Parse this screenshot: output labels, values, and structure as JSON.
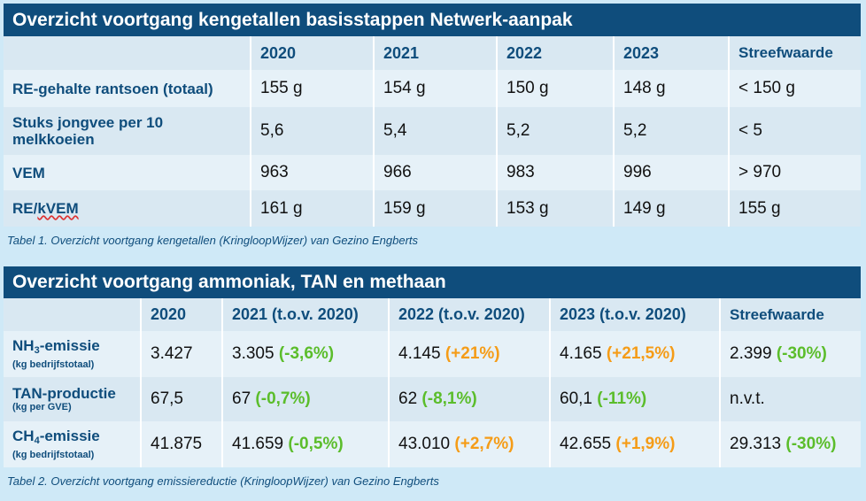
{
  "table1": {
    "title": "Overzicht voortgang kengetallen basisstappen Netwerk-aanpak",
    "headers": [
      "",
      "2020",
      "2021",
      "2022",
      "2023",
      "Streefwaarde"
    ],
    "rows": [
      {
        "label": "RE-gehalte rantsoen (totaal)",
        "values": [
          "155 g",
          "154 g",
          "150 g",
          "148 g",
          "< 150 g"
        ]
      },
      {
        "label": "Stuks jongvee per 10 melkkoeien",
        "values": [
          "5,6",
          "5,4",
          "5,2",
          "5,2",
          "< 5"
        ]
      },
      {
        "label": "VEM",
        "values": [
          "963",
          "966",
          "983",
          "996",
          "> 970"
        ]
      },
      {
        "label_prefix": "RE/",
        "label_underlined": "kVEM",
        "values": [
          "161 g",
          "159 g",
          "153 g",
          "149 g",
          "155 g"
        ]
      }
    ],
    "caption": "Tabel 1. Overzicht voortgang kengetallen (KringloopWijzer) van Gezino Engberts"
  },
  "table2": {
    "title": "Overzicht voortgang ammoniak, TAN en methaan",
    "headers": [
      "",
      "2020",
      "2021 (t.o.v. 2020)",
      "2022 (t.o.v. 2020)",
      "2023 (t.o.v. 2020)",
      "Streefwaarde"
    ],
    "rows": [
      {
        "label_pre": "NH",
        "label_sub": "3",
        "label_post": "-emissie",
        "unit": "(kg bedrijfstotaal)",
        "cells": [
          {
            "value": "3.427",
            "change": "",
            "color": ""
          },
          {
            "value": "3.305",
            "change": "(-3,6%)",
            "color": "green"
          },
          {
            "value": "4.145",
            "change": "(+21%)",
            "color": "orange"
          },
          {
            "value": "4.165",
            "change": "(+21,5%)",
            "color": "orange"
          },
          {
            "value": "2.399",
            "change": "(-30%)",
            "color": "green"
          }
        ]
      },
      {
        "label_pre": "TAN-productie",
        "label_sub": "",
        "label_post": "",
        "unit": "(kg per GVE)",
        "cells": [
          {
            "value": "67,5",
            "change": "",
            "color": ""
          },
          {
            "value": "67",
            "change": "(-0,7%)",
            "color": "green"
          },
          {
            "value": "62",
            "change": "(-8,1%)",
            "color": "green"
          },
          {
            "value": "60,1",
            "change": "(-11%)",
            "color": "green"
          },
          {
            "value": "n.v.t.",
            "change": "",
            "color": ""
          }
        ]
      },
      {
        "label_pre": "CH",
        "label_sub": "4",
        "label_post": "-emissie",
        "unit": "(kg bedrijfstotaal)",
        "cells": [
          {
            "value": "41.875",
            "change": "",
            "color": ""
          },
          {
            "value": "41.659",
            "change": "(-0,5%)",
            "color": "green"
          },
          {
            "value": "43.010",
            "change": "(+2,7%)",
            "color": "orange"
          },
          {
            "value": "42.655",
            "change": "(+1,9%)",
            "color": "orange"
          },
          {
            "value": "29.313",
            "change": "(-30%)",
            "color": "green"
          }
        ]
      }
    ],
    "caption": "Tabel 2. Overzicht voortgang emissiereductie (KringloopWijzer) van Gezino Engberts"
  },
  "colors": {
    "header_blue": "#0f4d7c",
    "green": "#5bbd2b",
    "orange": "#f59c17",
    "background": "#cfe9f7"
  }
}
